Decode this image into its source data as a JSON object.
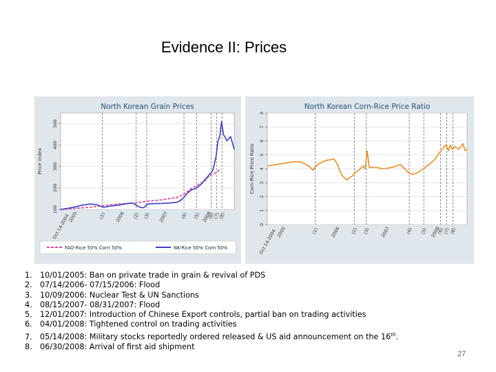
{
  "slide": {
    "title": "Evidence II: Prices",
    "page_number": "27"
  },
  "notes": [
    {
      "num": "1.",
      "text": "10/01/2005: Ban on private trade in grain & revival of PDS"
    },
    {
      "num": "2.",
      "text": "07/14/2006- 07/15/2006: Flood"
    },
    {
      "num": "3.",
      "text": "10/09/2006: Nuclear Test & UN Sanctions"
    },
    {
      "num": "4.",
      "text": "08/15/2007- 08/31/2007: Flood"
    },
    {
      "num": "5.",
      "text": "12/01/2007: Introduction of Chinese Export controls, partial ban on trading activities"
    },
    {
      "num": "6.",
      "text": "04/01/2008: Tightened control on trading activities"
    },
    {
      "num": "7.",
      "text": "05/14/2008: Military stocks reportedly ordered released & US aid announcement on the 16",
      "sup": "th",
      "tail": "."
    },
    {
      "num": "8.",
      "text": "06/30/2008: Arrival of first aid shipment"
    }
  ],
  "chart_data": [
    {
      "type": "line",
      "title": "North Korean Grain Prices",
      "ylabel": "Price index",
      "ylim": [
        100,
        550
      ],
      "yticks": [
        "100",
        "200",
        "300",
        "400",
        "500"
      ],
      "xlim": [
        0,
        48
      ],
      "x_start_label": "Oct 14-2004",
      "x_tick_labels": [
        {
          "x": 3,
          "label": "2005"
        },
        {
          "x": 16,
          "label": "2006"
        },
        {
          "x": 28,
          "label": "2007"
        },
        {
          "x": 40,
          "label": "2008"
        }
      ],
      "event_lines": [
        {
          "x": 11.5,
          "label": "(1)"
        },
        {
          "x": 20.9,
          "label": "(2)"
        },
        {
          "x": 23.8,
          "label": "(3)"
        },
        {
          "x": 34.1,
          "label": "(4)"
        },
        {
          "x": 37.6,
          "label": "(5)"
        },
        {
          "x": 41.6,
          "label": "(6)"
        },
        {
          "x": 43.1,
          "label": "(7)"
        },
        {
          "x": 44.6,
          "label": "(8)"
        }
      ],
      "legend_position": "bottom",
      "series": [
        {
          "name": "FAO-Rice 50% Corn 50%",
          "color": "#e0409a",
          "dash": true,
          "x": [
            0,
            4,
            8,
            12,
            16,
            20,
            24,
            28,
            32,
            34,
            36,
            38,
            40,
            41,
            42,
            43,
            44
          ],
          "values": [
            100,
            105,
            110,
            118,
            125,
            130,
            138,
            145,
            155,
            170,
            195,
            215,
            235,
            255,
            265,
            272,
            285
          ]
        },
        {
          "name": "NK-Rice 50% Corn 50%",
          "color": "#3c3cc8",
          "dash": false,
          "x": [
            0,
            2,
            4,
            6,
            8,
            9,
            10,
            11,
            12,
            14,
            16,
            18,
            20,
            21,
            22,
            23,
            24,
            26,
            28,
            30,
            32,
            33,
            34,
            35,
            36,
            37,
            38,
            39,
            40,
            41,
            42,
            42.5,
            43,
            43.5,
            44,
            44.5,
            45,
            46,
            47,
            48
          ],
          "values": [
            100,
            105,
            112,
            120,
            125,
            124,
            122,
            115,
            110,
            116,
            120,
            126,
            130,
            118,
            110,
            108,
            125,
            127,
            128,
            130,
            133,
            140,
            155,
            175,
            190,
            195,
            205,
            220,
            240,
            260,
            280,
            310,
            350,
            420,
            440,
            510,
            450,
            420,
            440,
            380
          ]
        }
      ]
    },
    {
      "type": "line",
      "title": "North Korean Corn-Rice Price Ratio",
      "ylabel": "Corn-Rice Price Ratio",
      "ylim": [
        0,
        8
      ],
      "yticks": [
        "0",
        "1",
        "2",
        "3",
        "4",
        "5",
        "6",
        "7",
        "8"
      ],
      "xlim": [
        0,
        48
      ],
      "x_start_label": "Oct 14-2004",
      "x_tick_labels": [
        {
          "x": 3,
          "label": "2005"
        },
        {
          "x": 16,
          "label": "2006"
        },
        {
          "x": 28,
          "label": "2007"
        },
        {
          "x": 40,
          "label": "2008"
        }
      ],
      "event_lines": [
        {
          "x": 11.5,
          "label": "(1)"
        },
        {
          "x": 20.9,
          "label": "(2)"
        },
        {
          "x": 23.8,
          "label": "(3)"
        },
        {
          "x": 34.1,
          "label": "(4)"
        },
        {
          "x": 37.6,
          "label": "(5)"
        },
        {
          "x": 41.6,
          "label": "(6)"
        },
        {
          "x": 43.1,
          "label": "(7)"
        },
        {
          "x": 44.6,
          "label": "(8)"
        }
      ],
      "legend_position": "none",
      "series": [
        {
          "color": "#f08c1e",
          "x": [
            0,
            2,
            4,
            6,
            8,
            10,
            11,
            12,
            14,
            16,
            16.5,
            17,
            17.5,
            18,
            19,
            20,
            20.5,
            21,
            22,
            23,
            23.5,
            24,
            24.2,
            24.5,
            26,
            28,
            30,
            32,
            33,
            34,
            35,
            36,
            38,
            40,
            41,
            42,
            42.5,
            43,
            43.5,
            44,
            44.5,
            45,
            46,
            47,
            47.5,
            48
          ],
          "values": [
            4.2,
            4.3,
            4.4,
            4.5,
            4.5,
            4.2,
            3.9,
            4.3,
            4.6,
            4.7,
            4.5,
            4.2,
            3.8,
            3.5,
            3.2,
            3.4,
            3.5,
            3.7,
            3.9,
            4.2,
            4.0,
            5.3,
            4.8,
            4.1,
            4.1,
            4.0,
            4.1,
            4.3,
            4.0,
            3.7,
            3.6,
            3.7,
            4.1,
            4.6,
            5.0,
            5.4,
            5.6,
            5.7,
            5.3,
            5.7,
            5.4,
            5.6,
            5.4,
            5.8,
            5.3,
            5.4
          ]
        }
      ]
    }
  ]
}
